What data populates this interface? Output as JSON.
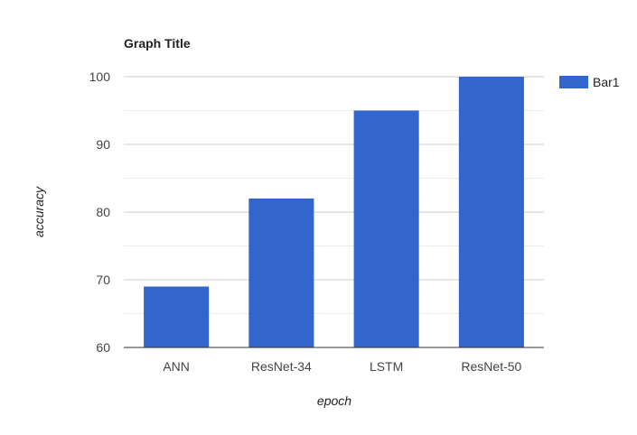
{
  "chart_data": {
    "type": "bar",
    "title": "Graph Title",
    "xlabel": "epoch",
    "ylabel": "accuracy",
    "categories": [
      "ANN",
      "ResNet-34",
      "LSTM",
      "ResNet-50"
    ],
    "series": [
      {
        "name": "Bar1",
        "values": [
          69,
          82,
          95,
          100
        ],
        "color": "#3366cc"
      }
    ],
    "ylim": [
      60,
      100
    ],
    "yticks": [
      60,
      70,
      80,
      90,
      100
    ],
    "ytick_labels": [
      "60",
      "70",
      "80",
      "90",
      "100"
    ],
    "grid": true,
    "legend_position": "right"
  }
}
